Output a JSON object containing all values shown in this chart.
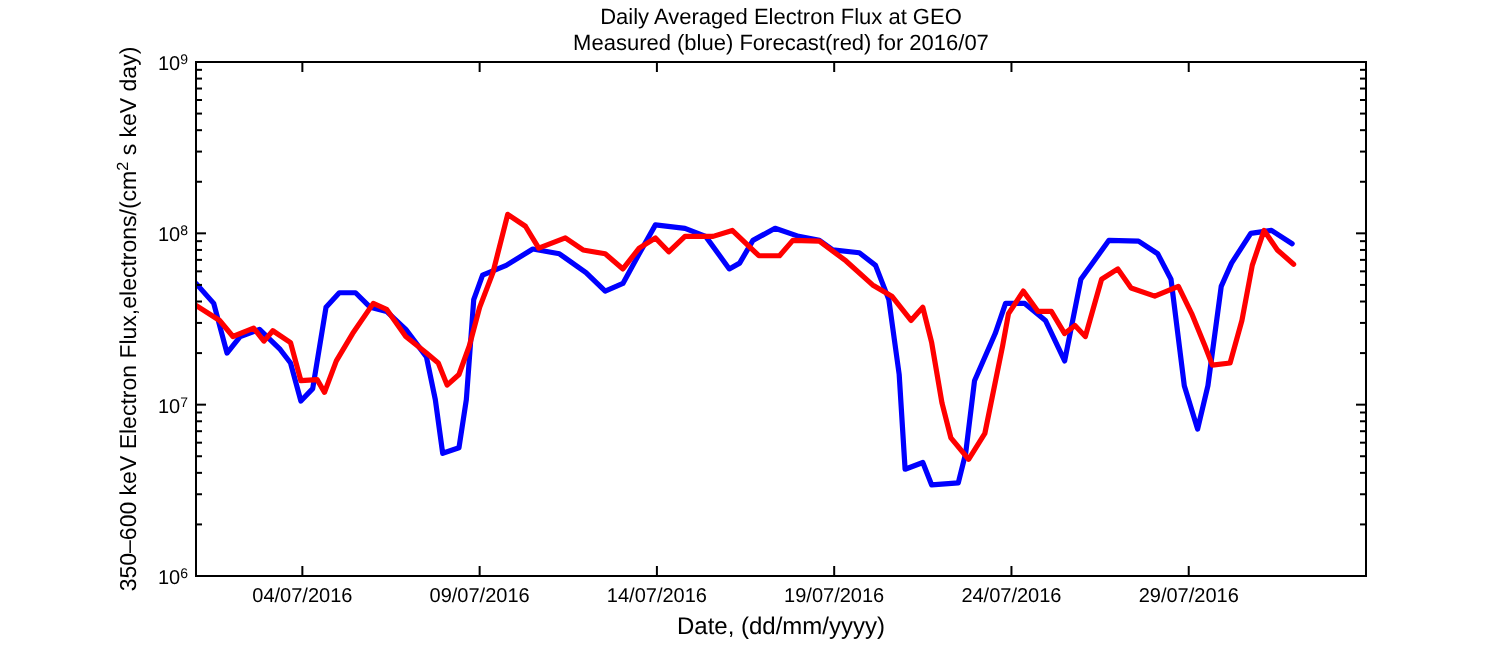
{
  "chart_data": {
    "type": "line",
    "title": "Daily Averaged Electron Flux at GEO",
    "subtitle": "Measured (blue) Forecast(red) for 2016/07",
    "xlabel": "Date, (dd/mm/yyyy)",
    "ylabel": "350–600 keV Electron Flux,electrons/(cm$^{2}$ s keV day)",
    "log": "y",
    "grid": false,
    "xlim": [
      "2016-07-01",
      "2016-08-03"
    ],
    "xticks": [
      {
        "value": "2016-07-04",
        "label": "04/07/2016"
      },
      {
        "value": "2016-07-09",
        "label": "09/07/2016"
      },
      {
        "value": "2016-07-14",
        "label": "14/07/2016"
      },
      {
        "value": "2016-07-19",
        "label": "19/07/2016"
      },
      {
        "value": "2016-07-24",
        "label": "24/07/2016"
      },
      {
        "value": "2016-07-29",
        "label": "29/07/2016"
      }
    ],
    "ylim": [
      1000000,
      1000000000
    ],
    "yticks": [
      {
        "value": 1000000,
        "label": "10$^{6}$"
      },
      {
        "value": 2000000,
        "label": null
      },
      {
        "value": 3000000,
        "label": null
      },
      {
        "value": 4000000,
        "label": null
      },
      {
        "value": 5000000,
        "label": null
      },
      {
        "value": 6000000,
        "label": null
      },
      {
        "value": 7000000,
        "label": null
      },
      {
        "value": 8000000,
        "label": null
      },
      {
        "value": 9000000,
        "label": null
      },
      {
        "value": 10000000,
        "label": "10$^{7}$"
      },
      {
        "value": 20000000,
        "label": null
      },
      {
        "value": 30000000,
        "label": null
      },
      {
        "value": 40000000,
        "label": null
      },
      {
        "value": 50000000,
        "label": null
      },
      {
        "value": 60000000,
        "label": null
      },
      {
        "value": 70000000,
        "label": null
      },
      {
        "value": 80000000,
        "label": null
      },
      {
        "value": 90000000,
        "label": null
      },
      {
        "value": 100000000,
        "label": "10$^{8}$"
      },
      {
        "value": 200000000,
        "label": null
      },
      {
        "value": 300000000,
        "label": null
      },
      {
        "value": 400000000,
        "label": null
      },
      {
        "value": 500000000,
        "label": null
      },
      {
        "value": 600000000,
        "label": null
      },
      {
        "value": 700000000,
        "label": null
      },
      {
        "value": 800000000,
        "label": null
      },
      {
        "value": 900000000,
        "label": null
      },
      {
        "value": 1000000000,
        "label": "10$^{9}$"
      }
    ],
    "series": [
      {
        "color": "#0000ff",
        "x": [
          "2016-07-01T00:00",
          "2016-07-01T12:00",
          "2016-07-01T21:00",
          "2016-07-02T06:00",
          "2016-07-02T19:00",
          "2016-07-03T09:00",
          "2016-07-03T16:00",
          "2016-07-03T23:00",
          "2016-07-04T07:00",
          "2016-07-04T16:00",
          "2016-07-05T01:00",
          "2016-07-05T12:00",
          "2016-07-05T22:00",
          "2016-07-06T09:00",
          "2016-07-06T22:00",
          "2016-07-07T12:00",
          "2016-07-07T18:00",
          "2016-07-07T23:00",
          "2016-07-08T10:00",
          "2016-07-08T15:00",
          "2016-07-08T20:00",
          "2016-07-09T02:00",
          "2016-07-09T18:00",
          "2016-07-10T12:00",
          "2016-07-11T06:00",
          "2016-07-12T00:00",
          "2016-07-12T13:00",
          "2016-07-13T01:00",
          "2016-07-13T12:00",
          "2016-07-13T23:00",
          "2016-07-14T19:00",
          "2016-07-15T09:00",
          "2016-07-16T01:00",
          "2016-07-16T08:00",
          "2016-07-16T17:00",
          "2016-07-17T08:00",
          "2016-07-18T00:00",
          "2016-07-18T14:00",
          "2016-07-18T23:00",
          "2016-07-19T17:00",
          "2016-07-20T04:00",
          "2016-07-20T13:00",
          "2016-07-20T20:00",
          "2016-07-21T00:00",
          "2016-07-21T12:00",
          "2016-07-21T18:00",
          "2016-07-22T12:00",
          "2016-07-22T17:00",
          "2016-07-22T23:00",
          "2016-07-23T13:00",
          "2016-07-23T20:00",
          "2016-07-24T09:00",
          "2016-07-24T23:00",
          "2016-07-25T12:00",
          "2016-07-25T23:00",
          "2016-07-26T18:00",
          "2016-07-27T14:00",
          "2016-07-28T03:00",
          "2016-07-28T12:00",
          "2016-07-28T21:00",
          "2016-07-29T06:00",
          "2016-07-29T13:00",
          "2016-07-29T22:00",
          "2016-07-30T05:00",
          "2016-07-30T18:00",
          "2016-07-31T08:00",
          "2016-07-31T22:00"
        ],
        "values": [
          51000000,
          39000000,
          20000000,
          25000000,
          27500000,
          21000000,
          17500000,
          10500000,
          12400000,
          37000000,
          45000000,
          45000000,
          37000000,
          35000000,
          27500000,
          19000000,
          10700000,
          5200000,
          5600000,
          10700000,
          41000000,
          57000000,
          65000000,
          81000000,
          76000000,
          59000000,
          46000000,
          51000000,
          76000000,
          112000000,
          107000000,
          96000000,
          62000000,
          67000000,
          91000000,
          107000000,
          96000000,
          91000000,
          80000000,
          77000000,
          65000000,
          41000000,
          15000000,
          4200000,
          4600000,
          3400000,
          3500000,
          5200000,
          13800000,
          26000000,
          39000000,
          39000000,
          31000000,
          18000000,
          54000000,
          91000000,
          90000000,
          76000000,
          54000000,
          12900000,
          7200000,
          12900000,
          49000000,
          67000000,
          100000000,
          104000000,
          87000000
        ]
      },
      {
        "color": "#ff0000",
        "x": [
          "2016-07-01T00:00",
          "2016-07-01T16:00",
          "2016-07-02T01:00",
          "2016-07-02T15:00",
          "2016-07-02T22:00",
          "2016-07-03T04:00",
          "2016-07-03T16:00",
          "2016-07-03T23:00",
          "2016-07-04T10:00",
          "2016-07-04T15:00",
          "2016-07-04T23:00",
          "2016-07-05T10:00",
          "2016-07-06T00:00",
          "2016-07-06T09:00",
          "2016-07-06T22:00",
          "2016-07-07T12:00",
          "2016-07-07T20:00",
          "2016-07-08T02:00",
          "2016-07-08T10:00",
          "2016-07-08T17:00",
          "2016-07-09T00:00",
          "2016-07-09T09:00",
          "2016-07-09T19:00",
          "2016-07-10T07:00",
          "2016-07-10T16:00",
          "2016-07-11T10:00",
          "2016-07-11T22:00",
          "2016-07-12T13:00",
          "2016-07-13T01:00",
          "2016-07-13T12:00",
          "2016-07-13T23:00",
          "2016-07-14T08:00",
          "2016-07-14T19:00",
          "2016-07-15T14:00",
          "2016-07-16T03:00",
          "2016-07-16T21:00",
          "2016-07-17T11:00",
          "2016-07-17T20:00",
          "2016-07-18T14:00",
          "2016-07-19T08:00",
          "2016-07-20T02:00",
          "2016-07-20T15:00",
          "2016-07-21T04:00",
          "2016-07-21T12:00",
          "2016-07-21T18:00",
          "2016-07-22T01:00",
          "2016-07-22T07:00",
          "2016-07-22T19:00",
          "2016-07-23T06:00",
          "2016-07-23T18:00",
          "2016-07-23T22:00",
          "2016-07-24T08:00",
          "2016-07-24T18:00",
          "2016-07-25T03:00",
          "2016-07-25T12:00",
          "2016-07-25T19:00",
          "2016-07-26T02:00",
          "2016-07-26T13:00",
          "2016-07-27T00:00",
          "2016-07-27T09:00",
          "2016-07-28T01:00",
          "2016-07-28T17:00",
          "2016-07-29T02:00",
          "2016-07-29T11:00",
          "2016-07-29T16:00",
          "2016-07-30T04:00",
          "2016-07-30T12:00",
          "2016-07-30T19:00",
          "2016-07-31T03:00",
          "2016-07-31T12:00",
          "2016-07-31T23:00"
        ],
        "values": [
          38000000,
          31000000,
          25000000,
          28000000,
          23500000,
          27000000,
          23000000,
          13800000,
          14000000,
          11800000,
          18000000,
          26000000,
          39000000,
          36000000,
          25000000,
          20000000,
          17500000,
          13000000,
          15000000,
          22000000,
          37000000,
          59000000,
          129000000,
          110000000,
          82000000,
          94000000,
          80000000,
          76000000,
          62000000,
          82000000,
          94000000,
          78000000,
          96000000,
          96000000,
          104000000,
          74000000,
          74000000,
          91000000,
          90000000,
          69000000,
          50000000,
          43000000,
          31000000,
          37000000,
          23000000,
          10200000,
          6400000,
          4800000,
          6800000,
          22000000,
          34000000,
          46000000,
          35000000,
          35000000,
          26000000,
          29000000,
          25000000,
          54000000,
          62000000,
          48000000,
          43000000,
          49000000,
          34000000,
          22000000,
          17000000,
          17500000,
          31000000,
          65000000,
          104000000,
          80000000,
          66000000
        ]
      }
    ]
  }
}
